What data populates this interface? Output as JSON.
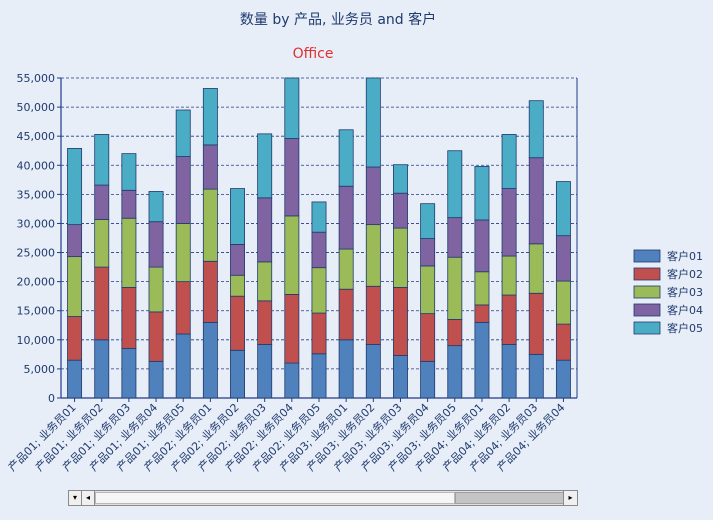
{
  "chart_data": {
    "type": "bar",
    "stacked": true,
    "title": "数量 by 产品, 业务员 and 客户",
    "subtitle": "Office",
    "xlabel": "",
    "ylabel": "",
    "ylim": [
      0,
      55000
    ],
    "yticks": [
      "0",
      "5,000",
      "10,000",
      "15,000",
      "20,000",
      "25,000",
      "30,000",
      "35,000",
      "40,000",
      "45,000",
      "50,000",
      "55,000"
    ],
    "grid": true,
    "legend_position": "right",
    "categories": [
      "产品01; 业务员01",
      "产品01; 业务员02",
      "产品01; 业务员03",
      "产品01; 业务员04",
      "产品01; 业务员05",
      "产品02; 业务员01",
      "产品02; 业务员02",
      "产品02; 业务员03",
      "产品02; 业务员04",
      "产品02; 业务员05",
      "产品03; 业务员01",
      "产品03; 业务员02",
      "产品03; 业务员03",
      "产品03; 业务员04",
      "产品03; 业务员05",
      "产品04; 业务员01",
      "产品04; 业务员02",
      "产品04; 业务员03",
      "产品04; 业务员04"
    ],
    "series": [
      {
        "name": "客户01",
        "color": "#4f81bd",
        "values": [
          6500,
          10000,
          8500,
          6300,
          11000,
          13000,
          8200,
          9200,
          6000,
          7600,
          10000,
          9200,
          7300,
          6300,
          9000,
          13000,
          9200,
          7500,
          6500
        ]
      },
      {
        "name": "客户02",
        "color": "#c0504d",
        "values": [
          7500,
          12500,
          10500,
          8500,
          9000,
          10500,
          9300,
          7500,
          11800,
          7000,
          8700,
          10000,
          11700,
          8200,
          4500,
          3000,
          8500,
          10500,
          6200
        ]
      },
      {
        "name": "客户03",
        "color": "#9bbb59",
        "values": [
          10300,
          8200,
          11900,
          7700,
          10000,
          12400,
          3600,
          6700,
          13500,
          7800,
          6900,
          10600,
          10200,
          8200,
          10700,
          5700,
          6700,
          8500,
          7400
        ]
      },
      {
        "name": "客户04",
        "color": "#8064a2",
        "values": [
          5500,
          5900,
          4800,
          7800,
          11500,
          7600,
          5300,
          11000,
          13300,
          6100,
          10800,
          9900,
          6000,
          4700,
          6800,
          8900,
          11600,
          14800,
          7800
        ]
      },
      {
        "name": "客户05",
        "color": "#4bacc6",
        "values": [
          13100,
          8700,
          6300,
          5200,
          8000,
          9700,
          9600,
          11000,
          10400,
          5200,
          9700,
          15300,
          4900,
          6000,
          11500,
          9200,
          9300,
          9800,
          9300
        ]
      }
    ]
  },
  "scrollbar": {
    "left_arrow": "◂",
    "right_arrow": "▸",
    "drop_arrow": "▾"
  }
}
